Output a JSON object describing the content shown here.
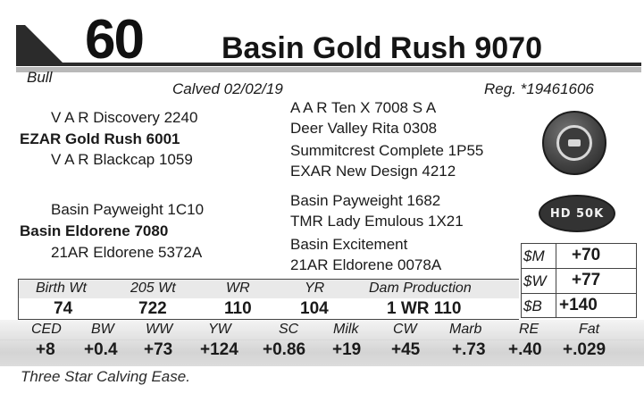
{
  "header": {
    "lot_number": "60",
    "sex": "Bull",
    "name": "Basin Gold Rush 9070",
    "calved": "Calved 02/02/19",
    "registration": "Reg. *19461606"
  },
  "pedigree": {
    "sire_sire": "V A R Discovery 2240",
    "sire": "EZAR Gold Rush 6001",
    "sire_dam": "V A R Blackcap 1059",
    "dam_sire": "Basin Payweight 1C10",
    "dam": "Basin Eldorene 7080",
    "dam_dam": "21AR Eldorene 5372A",
    "gg": [
      "A A R Ten X 7008 S A",
      "Deer Valley Rita 0308",
      "Summitcrest Complete 1P55",
      "EXAR New Design 4212",
      "Basin Payweight 1682",
      "TMR Lady Emulous 1X21",
      "Basin Excitement",
      "21AR Eldorene 0078A"
    ]
  },
  "badges": {
    "round_icon": "certified-seal-icon",
    "pill_text": "HD 50K"
  },
  "dollar_indexes": [
    {
      "label": "$M",
      "value": "+70"
    },
    {
      "label": "$W",
      "value": "+77"
    },
    {
      "label": "$B",
      "value": "+140"
    }
  ],
  "production": {
    "headers": [
      "Birth Wt",
      "205 Wt",
      "WR",
      "YR",
      "Dam Production"
    ],
    "values": [
      "74",
      "722",
      "110",
      "104",
      "1 WR 110"
    ]
  },
  "epds": {
    "headers": [
      "CED",
      "BW",
      "WW",
      "YW",
      "SC",
      "Milk",
      "CW",
      "Marb",
      "RE",
      "Fat"
    ],
    "values": [
      "+8",
      "+0.4",
      "+73",
      "+124",
      "+0.86",
      "+19",
      "+45",
      "+.73",
      "+.40",
      "+.029"
    ]
  },
  "footnote": "Three Star Calving Ease."
}
